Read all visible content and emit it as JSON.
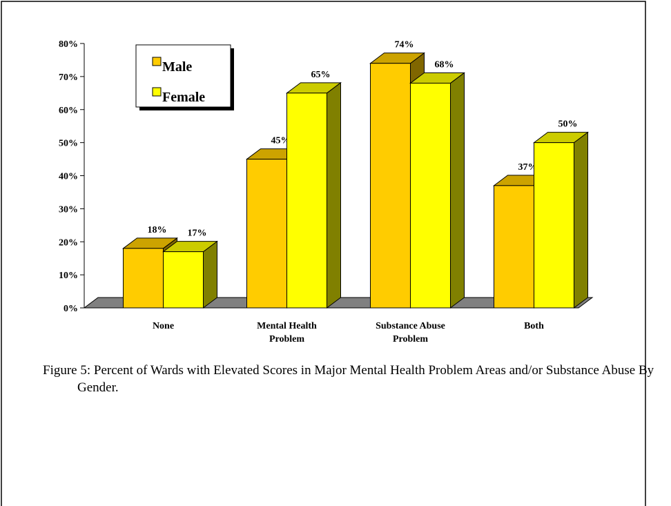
{
  "chart_data": {
    "type": "bar3d",
    "categories": [
      "None",
      "Mental Health Problem",
      "Substance Abuse Problem",
      "Both"
    ],
    "series": [
      {
        "name": "Male",
        "color": "#ffcc00",
        "values": [
          18,
          45,
          74,
          37
        ],
        "value_labels": [
          "18%",
          "45%",
          "74%",
          "37%"
        ]
      },
      {
        "name": "Female",
        "color": "#ffff00",
        "values": [
          17,
          65,
          68,
          50
        ],
        "value_labels": [
          "17%",
          "65%",
          "68%",
          "50%"
        ]
      }
    ],
    "ylim": [
      0,
      80
    ],
    "yticks": [
      {
        "value": 0,
        "label": "0%"
      },
      {
        "value": 10,
        "label": "10%"
      },
      {
        "value": 20,
        "label": "20%"
      },
      {
        "value": 30,
        "label": "30%"
      },
      {
        "value": 40,
        "label": "40%"
      },
      {
        "value": 50,
        "label": "50%"
      },
      {
        "value": 60,
        "label": "60%"
      },
      {
        "value": 70,
        "label": "70%"
      },
      {
        "value": 80,
        "label": "80%"
      }
    ],
    "caption": "Figure 5: Percent of Wards with Elevated Scores in Major Mental Health Problem Areas and/or Substance Abuse By Gender."
  }
}
